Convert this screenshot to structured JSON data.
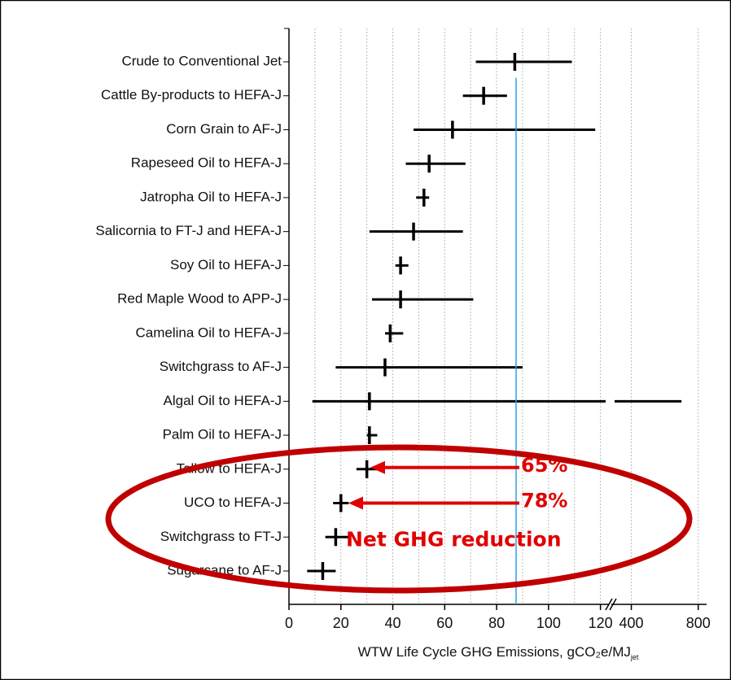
{
  "chart_data": {
    "type": "range_dot",
    "x_label": "WTW Life Cycle GHG Emissions, gCO₂e/MJ",
    "x_label_subscript": "jet",
    "categories": [
      "Crude to Conventional Jet",
      "Cattle By-products to HEFA-J",
      "Corn Grain to AF-J",
      "Rapeseed Oil to HEFA-J",
      "Jatropha Oil to HEFA-J",
      "Salicornia to FT-J and HEFA-J",
      "Soy Oil to HEFA-J",
      "Red Maple Wood to APP-J",
      "Camelina Oil to HEFA-J",
      "Switchgrass to AF-J",
      "Algal Oil to HEFA-J",
      "Palm Oil to HEFA-J",
      "Tallow to HEFA-J",
      "UCO to HEFA-J",
      "Switchgrass to FT-J",
      "Sugarcane to AF-J"
    ],
    "values": [
      87,
      75,
      63,
      54,
      52,
      48,
      43,
      43,
      39,
      37,
      31,
      31,
      30,
      20,
      18,
      13
    ],
    "low": [
      72,
      67,
      48,
      45,
      49,
      31,
      41,
      32,
      37,
      18,
      9,
      30,
      26,
      17,
      14,
      7
    ],
    "high": [
      109,
      84,
      118,
      68,
      54,
      67,
      46,
      71,
      44,
      90,
      700,
      34,
      34,
      23,
      23,
      18
    ],
    "color": "#000000",
    "xlim": [
      0,
      122
    ],
    "xticks": [
      0,
      20,
      40,
      60,
      80,
      100,
      120
    ],
    "xminorticks": [
      10,
      30,
      50,
      70,
      90,
      110
    ],
    "x2lim": [
      300,
      850
    ],
    "x2ticks": [
      400,
      800
    ],
    "grid": true,
    "reference_line": {
      "value": 87.5,
      "color": "#29a3e0"
    },
    "annotations": {
      "tallow_reduction": "65%",
      "uco_reduction": "78%",
      "note": "Net GHG reduction"
    },
    "highlight_color": "#e00000"
  }
}
